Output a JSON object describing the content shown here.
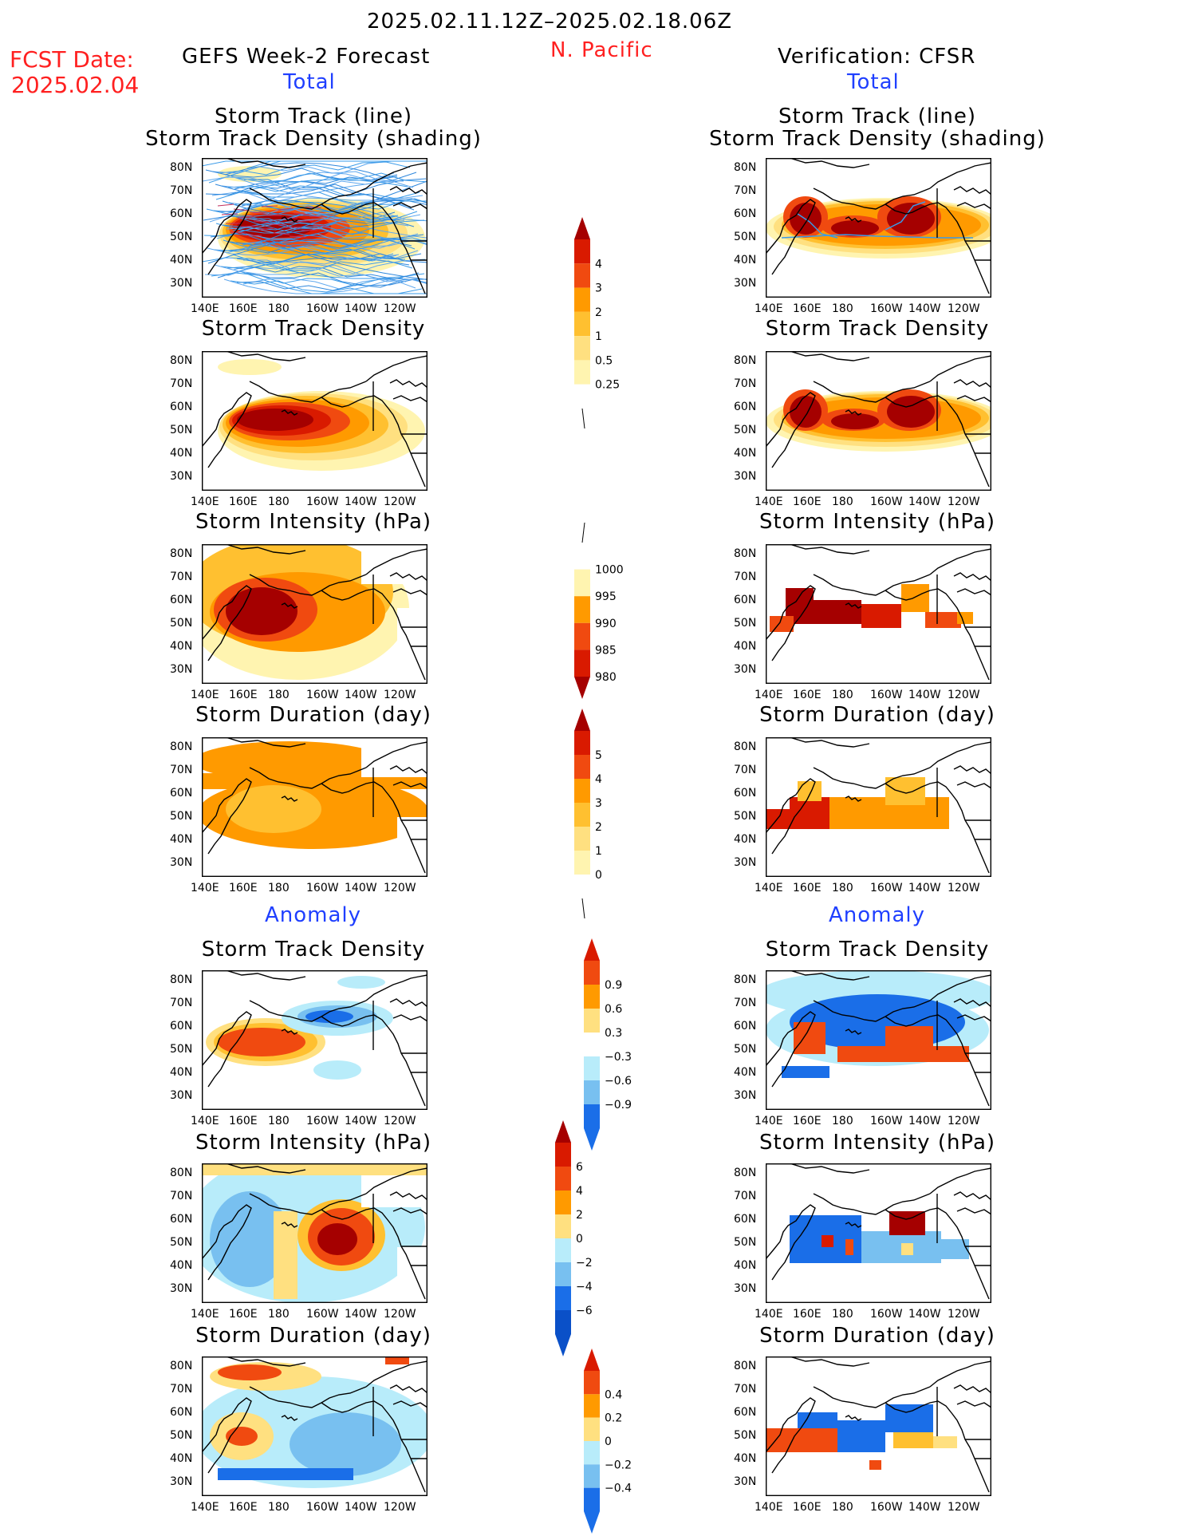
{
  "header": {
    "period": "2025.02.11.12Z–2025.02.18.06Z",
    "region": "N. Pacific",
    "fcst_label": "FCST Date:",
    "fcst_date": "2025.02.04",
    "left_title": "GEFS Week-2 Forecast",
    "right_title": "Verification: CFSR",
    "total_label": "Total",
    "anomaly_label": "Anomaly"
  },
  "panel_titles": {
    "track_line": "Storm Track (line)",
    "track_shading": "Storm Track Density (shading)",
    "density": "Storm Track Density",
    "intensity": "Storm Intensity (hPa)",
    "duration": "Storm Duration (day)"
  },
  "axes": {
    "lat_labels": [
      "80N",
      "70N",
      "60N",
      "50N",
      "40N",
      "30N"
    ],
    "lon_labels": [
      "140E",
      "160E",
      "180",
      "160W",
      "140W",
      "120W"
    ]
  },
  "colorbars": {
    "density_total": [
      "4",
      "3",
      "2",
      "1",
      "0.5",
      "0.25"
    ],
    "intensity_total": [
      "1000",
      "995",
      "990",
      "985",
      "980"
    ],
    "duration_total": [
      "5",
      "4",
      "3",
      "2",
      "1",
      "0"
    ],
    "density_anom": [
      "0.9",
      "0.6",
      "0.3",
      "−0.3",
      "−0.6",
      "−0.9"
    ],
    "intensity_anom": [
      "6",
      "4",
      "2",
      "0",
      "−2",
      "−4",
      "−6"
    ],
    "duration_anom": [
      "0.4",
      "0.2",
      "0",
      "−0.2",
      "−0.4"
    ]
  },
  "colors": {
    "dark_red": "#a50000",
    "red": "#d91a00",
    "red_orange": "#f04a10",
    "orange": "#ff9a00",
    "light_orange": "#ffc030",
    "yellow": "#ffe080",
    "pale_yellow": "#fff4b0",
    "light_blue": "#b8ecfa",
    "mid_blue": "#78c0f0",
    "blue": "#1a6ee8",
    "dark_blue": "#0a50c8",
    "track_blue": "#3a9be8"
  }
}
